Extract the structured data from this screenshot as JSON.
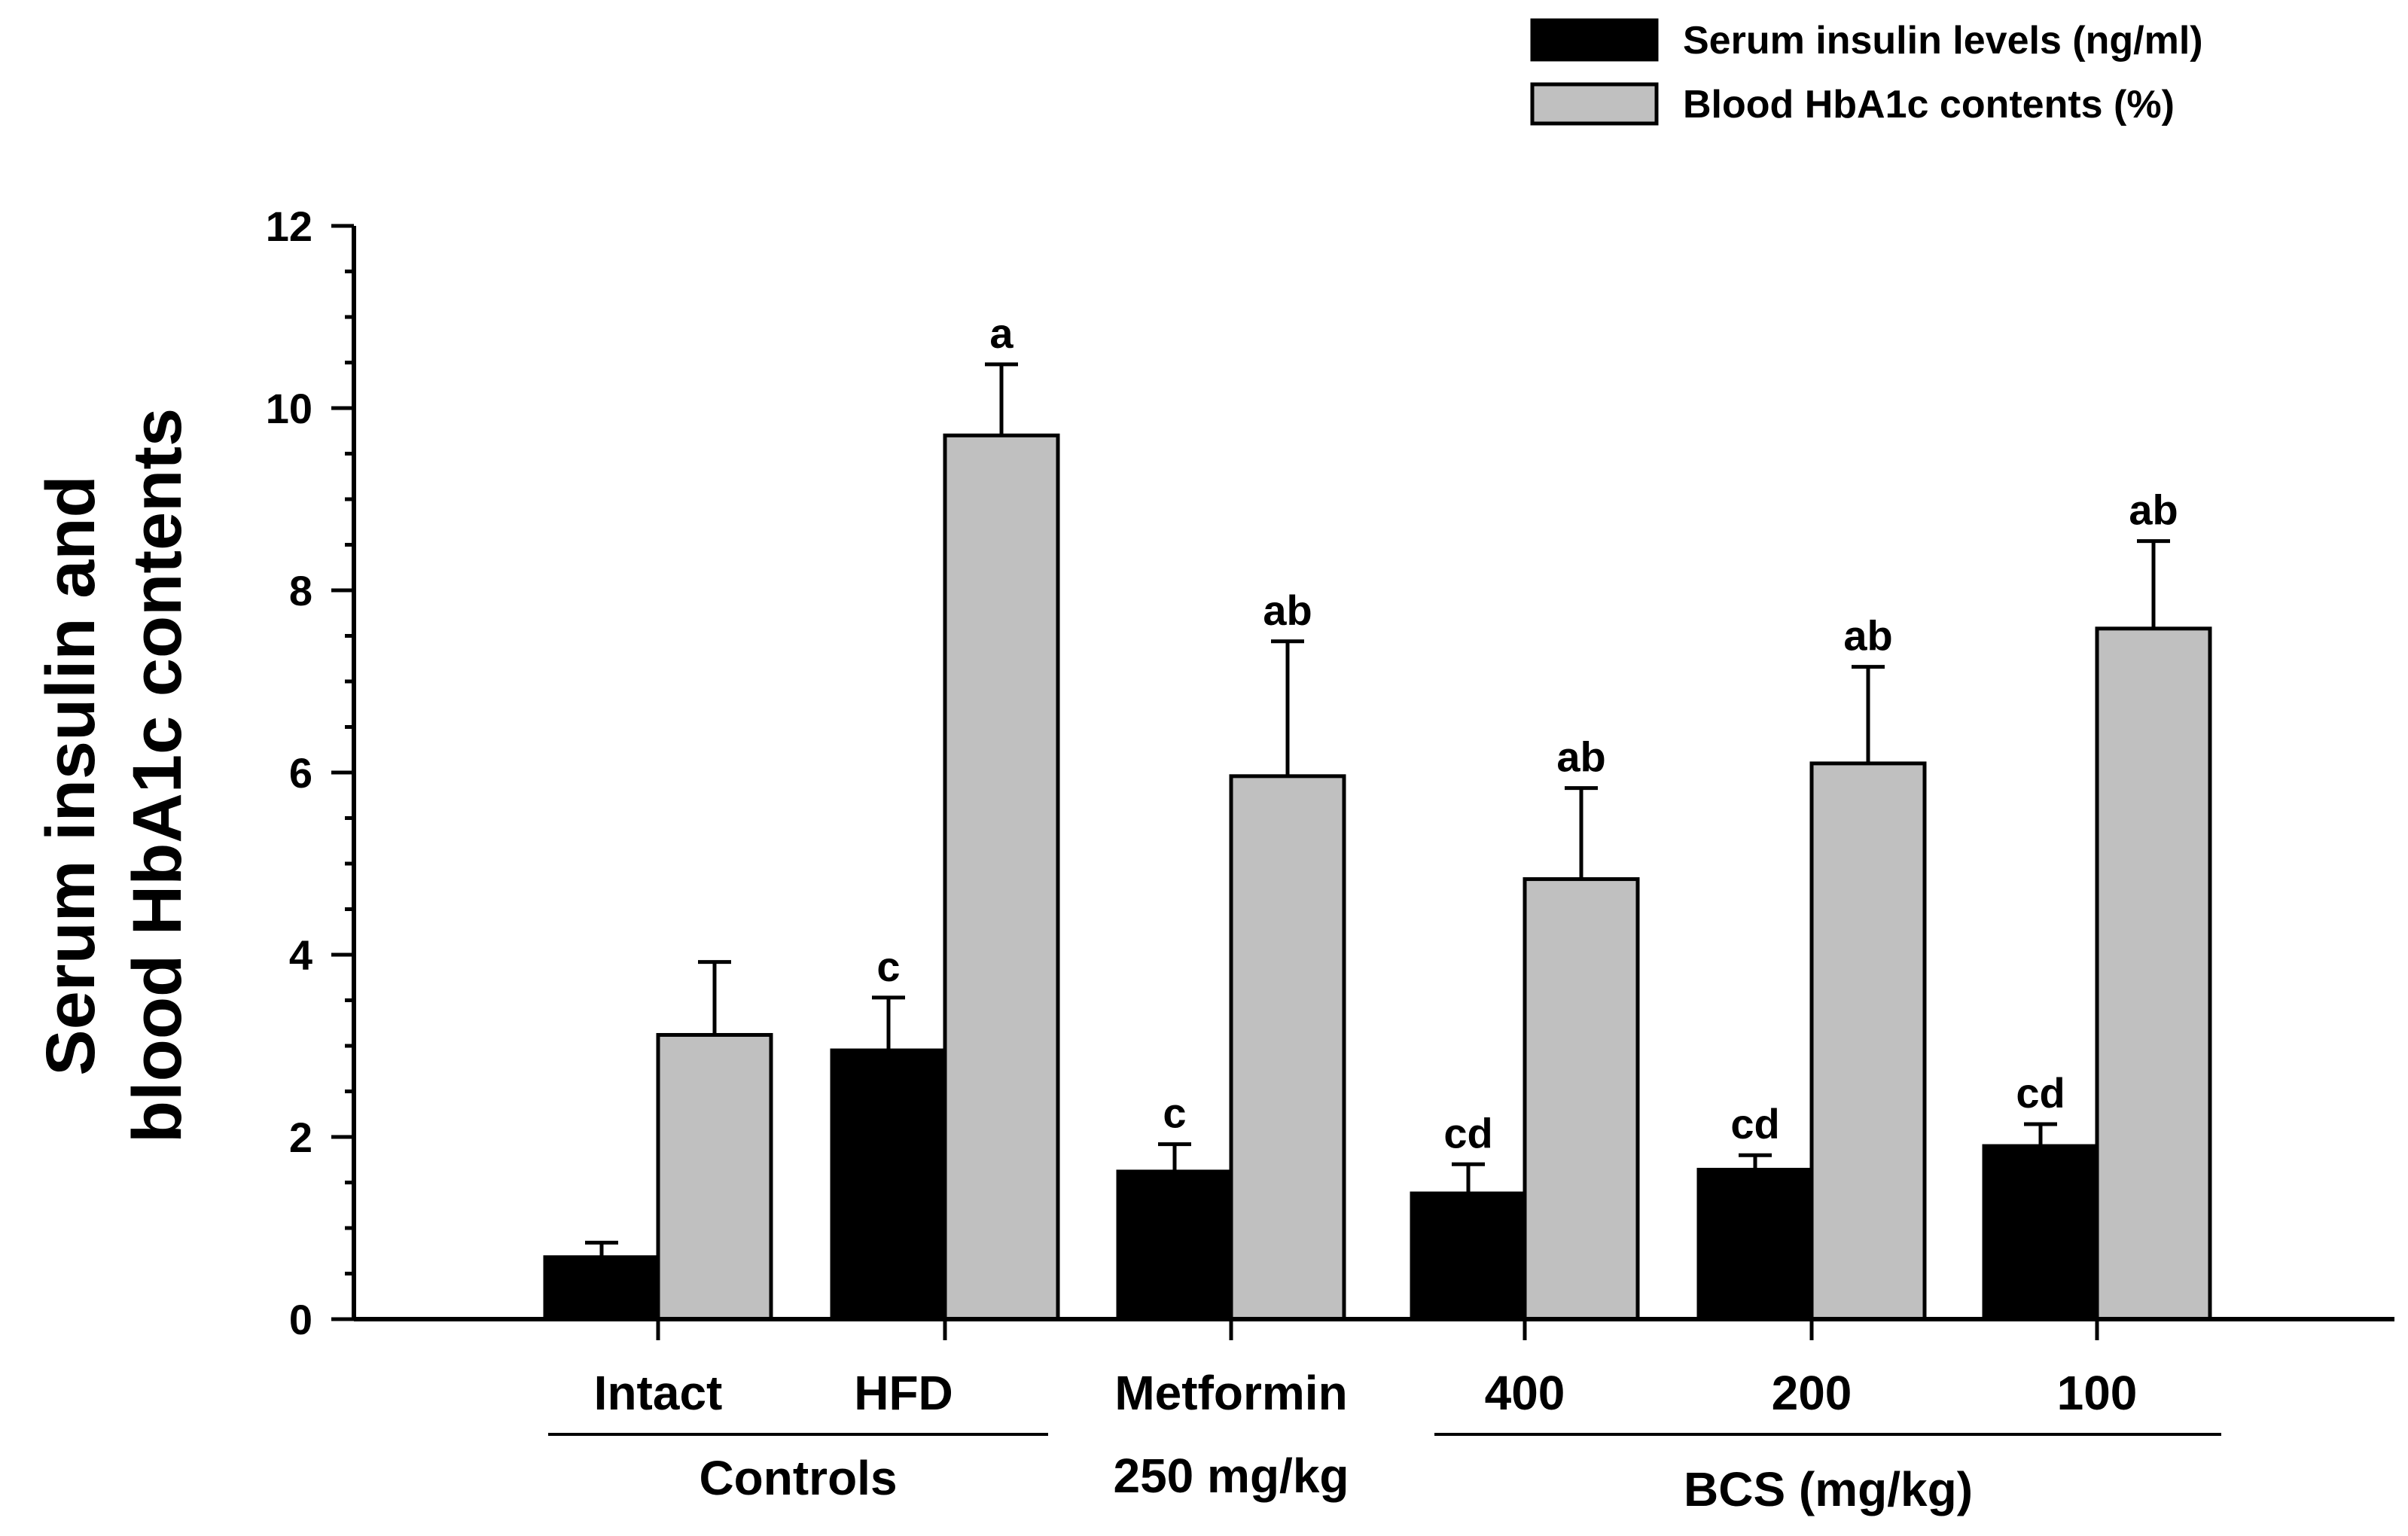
{
  "chart_data": {
    "type": "bar",
    "ylabel_lines": [
      "Serum insulin and",
      "blood HbA1c contents"
    ],
    "ylim": [
      0,
      12
    ],
    "yticks": [
      "0",
      "2",
      "4",
      "6",
      "8",
      "10",
      "12"
    ],
    "categories": [
      {
        "label_lines": [
          "Intact"
        ]
      },
      {
        "label_lines": [
          "HFD"
        ]
      },
      {
        "label_lines": [
          "Metformin",
          "250 mg/kg"
        ]
      },
      {
        "label_lines": [
          "400"
        ]
      },
      {
        "label_lines": [
          "200"
        ]
      },
      {
        "label_lines": [
          "100"
        ]
      }
    ],
    "groups": [
      {
        "label": "Controls",
        "spans": [
          0,
          1
        ]
      },
      {
        "label": "BCS (mg/kg)",
        "spans": [
          3,
          5
        ]
      }
    ],
    "series": [
      {
        "name": "Serum insulin levels (ng/ml)",
        "color": "#000000",
        "values": [
          0.68,
          2.95,
          1.62,
          1.38,
          1.64,
          1.9
        ],
        "errors": [
          0.16,
          0.58,
          0.3,
          0.32,
          0.16,
          0.24
        ],
        "annotations": [
          "",
          "c",
          "c",
          "cd",
          "cd",
          "cd"
        ]
      },
      {
        "name": "Blood HbA1c contents (%)",
        "color": "#c0c0c0",
        "values": [
          3.12,
          9.7,
          5.96,
          4.83,
          6.1,
          7.58
        ],
        "errors": [
          0.8,
          0.78,
          1.48,
          1.0,
          1.06,
          0.96
        ],
        "annotations": [
          "",
          "a",
          "ab",
          "ab",
          "ab",
          "ab"
        ]
      }
    ]
  }
}
